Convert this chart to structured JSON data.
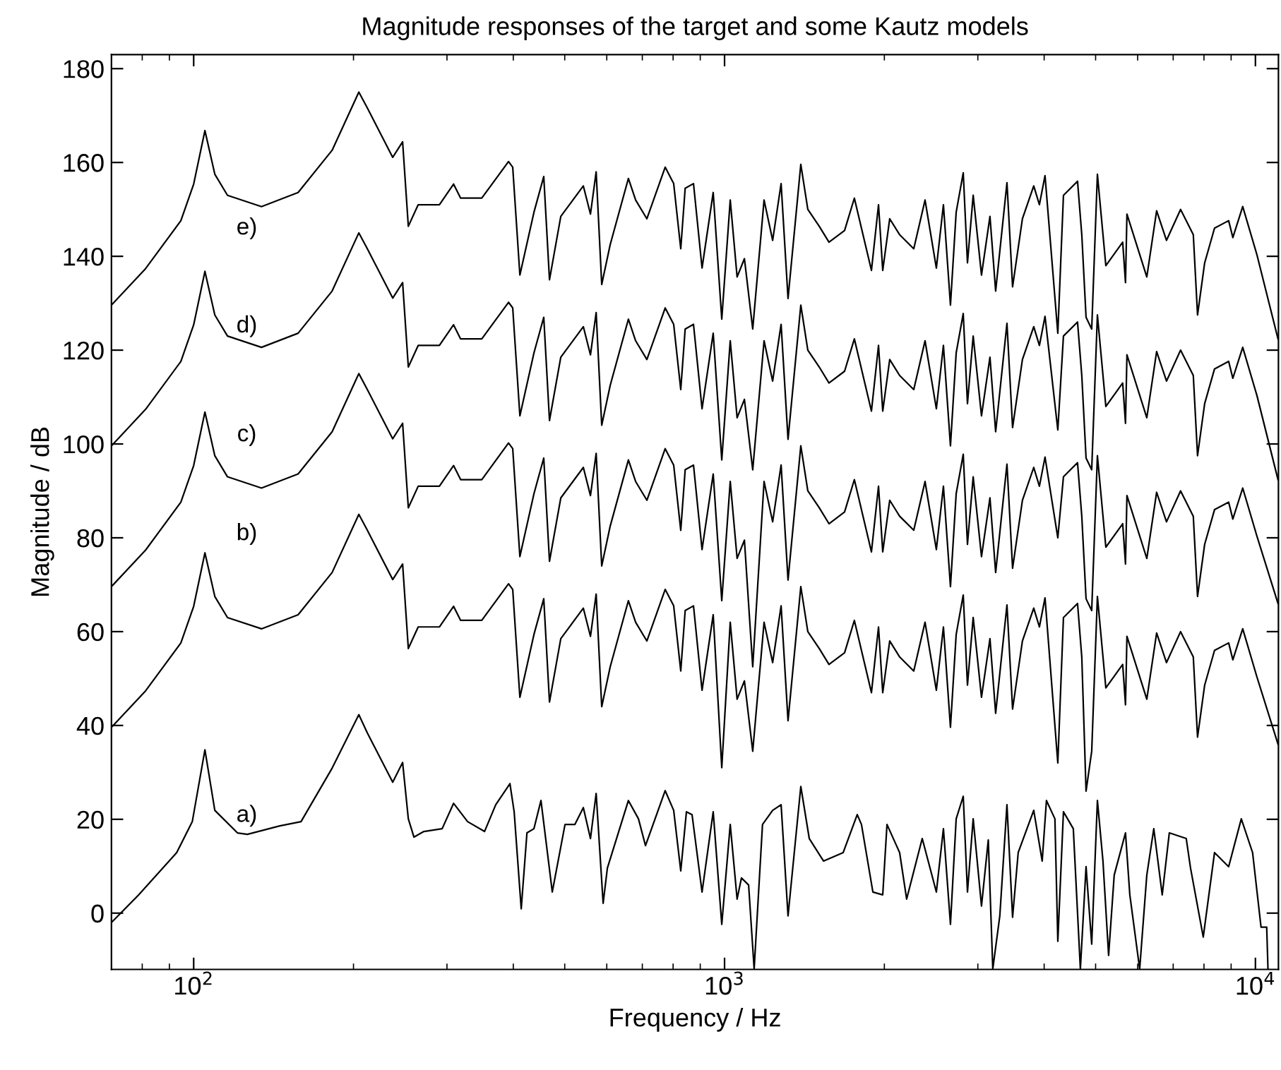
{
  "chart_data": {
    "type": "line",
    "title": "Magnitude responses of the target and some Kautz models",
    "xlabel": "Frequency / Hz",
    "ylabel": "Magnitude / dB",
    "log": "x",
    "grid": false,
    "line_style": "solid",
    "marker": "none",
    "xlim": [
      70,
      11050
    ],
    "xticks": [
      {
        "value": 100,
        "label": "10$^{2}$"
      },
      {
        "value": 1000,
        "label": "10$^{3}$"
      },
      {
        "value": 10000,
        "label": "10$^{4}$"
      }
    ],
    "ylim": [
      -12,
      183
    ],
    "yticks": [
      0,
      20,
      40,
      60,
      80,
      100,
      120,
      140,
      160,
      180
    ],
    "x": [
      70,
      81.2,
      94.6,
      100,
      105,
      109.6,
      115.8,
      134.2,
      157.3,
      182.3,
      204.7,
      212.4,
      237.1,
      247.5,
      253.7,
      264.8,
      290.3,
      308.7,
      318.3,
      348.9,
      391.8,
      399,
      411.6,
      437.5,
      456.5,
      468,
      491.5,
      542,
      559,
      573,
      587,
      609,
      659,
      680,
      714,
      773,
      802,
      827,
      843,
      874,
      907,
      952,
      988,
      1025,
      1056,
      1090,
      1130,
      1187,
      1232,
      1278,
      1317,
      1392,
      1435,
      1508,
      1573,
      1683,
      1756,
      1891,
      1950,
      1986,
      2047,
      2137,
      2272,
      2386,
      2506,
      2584,
      2664,
      2731,
      2816,
      2868,
      2940,
      3048,
      3162,
      3241,
      3404,
      3488,
      3640,
      3823,
      3918,
      4015,
      4244,
      4349,
      4623,
      4709,
      4797,
      4916,
      5039,
      5227,
      5623,
      5692,
      5728,
      6243,
      6515,
      6800,
      7228,
      7638,
      7780,
      8024,
      8375,
      8904,
      9067,
      9464,
      10062,
      11030
    ],
    "series": [
      {
        "color": "#000000",
        "x": [
          70,
          78.8,
          92.9,
          99.4,
          105,
          109.6,
          120.9,
          126.2,
          145.3,
          159.3,
          182.3,
          204.7,
          212.4,
          237.1,
          247.5,
          253.7,
          260,
          271.4,
          293.8,
          308.7,
          328.1,
          353.1,
          370.7,
          394.2,
          401.5,
          414,
          424.4,
          437.5,
          451,
          473.7,
          500.6,
          522.6,
          542,
          559,
          573,
          590.6,
          601.6,
          659,
          688.4,
          709.7,
          773,
          802,
          827,
          847.6,
          868.5,
          907,
          952,
          988,
          1025,
          1056,
          1076,
          1110,
          1137,
          1179,
          1232,
          1278,
          1317,
          1392,
          1444,
          1536,
          1673,
          1778,
          1811,
          1903,
          1986,
          2023,
          2137,
          2203,
          2357,
          2506,
          2584,
          2664,
          2731,
          2816,
          2868,
          2940,
          3048,
          3139,
          3201,
          3300,
          3404,
          3488,
          3574,
          3823,
          3966,
          4040,
          4191,
          4244,
          4349,
          4539,
          4680,
          4797,
          4916,
          5039,
          5162,
          5290,
          5420,
          5692,
          5800,
          6053,
          6243,
          6435,
          6675,
          6883,
          7408,
          7547,
          7975,
          8375,
          8904,
          9406,
          9878,
          10247,
          10502,
          10560
        ],
        "values": [
          -2,
          3.9,
          12.9,
          19.5,
          34.8,
          21.9,
          17.1,
          16.8,
          18.6,
          19.5,
          30.9,
          42.3,
          38.4,
          27.9,
          32.1,
          20.1,
          16.2,
          17.4,
          18,
          23.4,
          19.5,
          17.4,
          23.1,
          27.6,
          21.6,
          0.9,
          17.1,
          18,
          24,
          4.5,
          18.9,
          18.9,
          22.5,
          15.9,
          25.5,
          2.1,
          9.6,
          24,
          20.1,
          14.4,
          26.1,
          21.9,
          9,
          21.6,
          21,
          4.5,
          21.6,
          -2.4,
          18.9,
          3,
          7.5,
          6,
          -11.9,
          18.9,
          21.9,
          23.1,
          -0.6,
          27,
          15.9,
          11.1,
          12.9,
          21,
          18.9,
          4.5,
          3.9,
          18.9,
          12.9,
          3,
          15.9,
          4.5,
          18,
          -2.4,
          20.1,
          24.9,
          4.5,
          20.1,
          1.5,
          15.6,
          -11.9,
          -0.6,
          23.1,
          -0.9,
          12.9,
          21.9,
          11.1,
          24,
          20.1,
          -6,
          21.6,
          18,
          -11.9,
          9.9,
          -6.6,
          24,
          11.1,
          -9,
          8.1,
          17.1,
          3.9,
          -11.9,
          8.1,
          18,
          3.9,
          17.1,
          15.9,
          9.6,
          -5.1,
          12.9,
          9.9,
          20.1,
          12.9,
          -3,
          -3,
          -11.9
        ]
      },
      {
        "color": "#000000",
        "values": [
          39.6,
          47.4,
          57.6,
          65.4,
          76.8,
          67.5,
          63,
          60.6,
          63.6,
          72.6,
          85,
          81.6,
          71.1,
          74.4,
          56.4,
          61,
          61,
          65.4,
          62.4,
          62.4,
          70.2,
          69,
          46,
          59.4,
          67,
          45,
          58.5,
          65,
          59,
          68,
          44,
          52.5,
          66.6,
          62,
          58,
          69,
          65.5,
          51.6,
          64.5,
          65.5,
          47.5,
          63.6,
          31,
          62,
          45.6,
          49.5,
          34.5,
          62,
          53.4,
          65.5,
          41,
          69.6,
          60,
          56.4,
          53,
          55.5,
          62.4,
          47,
          61,
          47,
          58,
          54.6,
          51.6,
          62,
          47.5,
          61,
          39.6,
          59.4,
          67.8,
          48.6,
          63,
          46,
          58.5,
          42.6,
          65.7,
          43.5,
          58,
          65,
          61,
          67.2,
          32,
          63,
          66,
          54.6,
          26,
          34.5,
          67.5,
          48,
          53,
          44.4,
          59,
          45.6,
          59.7,
          53.4,
          60,
          54.6,
          37.5,
          48.6,
          56,
          57.6,
          54,
          60.6,
          50.4,
          36
        ]
      },
      {
        "color": "#000000",
        "values": [
          69.6,
          77.4,
          87.6,
          95.4,
          106.8,
          97.5,
          93,
          90.6,
          93.6,
          102.6,
          115,
          111.6,
          101.1,
          104.4,
          86.4,
          91,
          91,
          95.4,
          92.4,
          92.4,
          100.2,
          99,
          76,
          89.4,
          97,
          75,
          88.5,
          95,
          89,
          98,
          74,
          82.5,
          96.6,
          92,
          88,
          99,
          95.5,
          81.6,
          94.5,
          95.5,
          77.5,
          93.6,
          66.6,
          92,
          75.6,
          79.5,
          52.5,
          92,
          83.4,
          95.5,
          71,
          99.6,
          90,
          86.4,
          83,
          85.5,
          92.4,
          77,
          91,
          77,
          88,
          84.6,
          81.6,
          92,
          77.5,
          91,
          69.6,
          89.4,
          97.8,
          78.6,
          93,
          76,
          88.5,
          72.6,
          95.7,
          73.5,
          88,
          95,
          91,
          97.2,
          80,
          93,
          96,
          84.6,
          67,
          64.5,
          97.5,
          78,
          83,
          74.4,
          89,
          75.6,
          89.7,
          83.4,
          90,
          84.6,
          67.5,
          78.6,
          86,
          87.6,
          84,
          90.6,
          80.4,
          66
        ]
      },
      {
        "color": "#000000",
        "values": [
          99.6,
          107.4,
          117.6,
          125.4,
          136.8,
          127.5,
          123,
          120.6,
          123.6,
          132.6,
          145,
          141.6,
          131.1,
          134.4,
          116.4,
          121,
          121,
          125.4,
          122.4,
          122.4,
          130.2,
          129,
          106,
          119.4,
          127,
          105,
          118.5,
          125,
          119,
          128,
          104,
          112.5,
          126.6,
          122,
          118,
          129,
          125.5,
          111.6,
          124.5,
          125.5,
          107.5,
          123.6,
          96.6,
          122,
          105.6,
          109.5,
          94.5,
          122,
          113.4,
          125.5,
          101,
          129.6,
          120,
          116.4,
          113,
          115.5,
          122.4,
          107,
          121,
          107,
          118,
          114.6,
          111.6,
          122,
          107.5,
          121,
          99.6,
          119.4,
          127.8,
          108.6,
          123,
          106,
          118.5,
          102.6,
          125.7,
          103.5,
          118,
          125,
          121,
          127.2,
          103,
          123,
          126,
          114.6,
          97,
          94.5,
          127.5,
          108,
          113,
          104.4,
          119,
          105.6,
          119.7,
          113.4,
          120,
          114.6,
          97.5,
          108.6,
          116,
          117.6,
          114,
          120.6,
          110.4,
          92.4
        ]
      },
      {
        "color": "#000000",
        "values": [
          129.6,
          137.4,
          147.6,
          155.4,
          166.8,
          157.5,
          153,
          150.6,
          153.6,
          162.6,
          175,
          171.6,
          161.1,
          164.4,
          146.4,
          151,
          151,
          155.4,
          152.4,
          152.4,
          160.2,
          159,
          136,
          149.4,
          157,
          135,
          148.5,
          155,
          149,
          158,
          134,
          142.5,
          156.6,
          152,
          148,
          159,
          155.5,
          141.6,
          154.5,
          155.5,
          137.5,
          153.6,
          126.6,
          152,
          135.6,
          139.5,
          124.5,
          152,
          143.4,
          155.5,
          131,
          159.6,
          150,
          146.4,
          143,
          145.5,
          152.4,
          137,
          151,
          137,
          148,
          144.6,
          141.6,
          152,
          137.5,
          151,
          129.6,
          149.4,
          157.8,
          138.6,
          153,
          136,
          148.5,
          132.6,
          155.7,
          133.5,
          148,
          155,
          151,
          157.2,
          123.6,
          153,
          156,
          144.6,
          127,
          124.5,
          157.5,
          138,
          143,
          134.4,
          149,
          135.6,
          149.7,
          143.4,
          150,
          144.6,
          127.5,
          138.6,
          146,
          147.6,
          144,
          150.6,
          140.4,
          122.4
        ]
      }
    ],
    "annotations": [
      "a)",
      "b)",
      "c)",
      "d)",
      "e)"
    ]
  }
}
